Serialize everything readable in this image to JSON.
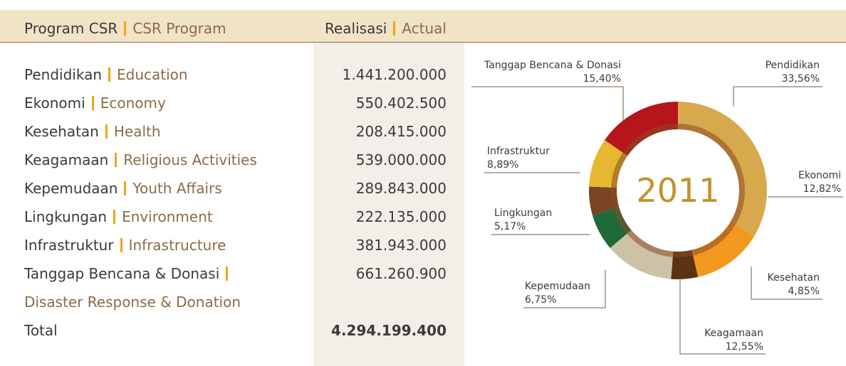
{
  "table": {
    "header": {
      "program_id": "Program CSR",
      "program_en": "CSR Program",
      "actual_id": "Realisasi",
      "actual_en": "Actual"
    },
    "rows": [
      {
        "label_id": "Pendidikan",
        "label_en": "Education",
        "value": "1.441.200.000"
      },
      {
        "label_id": "Ekonomi",
        "label_en": "Economy",
        "value": "550.402.500"
      },
      {
        "label_id": "Kesehatan",
        "label_en": "Health",
        "value": "208.415.000"
      },
      {
        "label_id": "Keagamaan",
        "label_en": "Religious Activities",
        "value": "539.000.000"
      },
      {
        "label_id": "Kepemudaan",
        "label_en": "Youth Affairs",
        "value": "289.843.000"
      },
      {
        "label_id": "Lingkungan",
        "label_en": "Environment",
        "value": "222.135.000"
      },
      {
        "label_id": "Infrastruktur",
        "label_en": "Infrastructure",
        "value": "381.943.000"
      },
      {
        "label_id": "Tanggap Bencana & Donasi",
        "label_en": "Disaster Response & Donation",
        "value": "661.260.900"
      }
    ],
    "total": {
      "label": "Total",
      "value": "4.294.199.400"
    }
  },
  "chart": {
    "type": "pie",
    "center_label": "2011",
    "categories": [
      "Pendidikan",
      "Ekonomi",
      "Kesehatan",
      "Keagamaan",
      "Kepemudaan",
      "Lingkungan",
      "Infrastruktur",
      "Tanggap Bencana & Donasi"
    ],
    "values": [
      33.56,
      12.82,
      4.85,
      12.55,
      6.75,
      5.17,
      8.89,
      15.4
    ],
    "value_labels": [
      "33,56%",
      "12,82%",
      "4,85%",
      "12,55%",
      "6,75%",
      "5,17%",
      "8,89%",
      "15,40%"
    ],
    "colors": [
      "#d8a94c",
      "#f2981f",
      "#5b3212",
      "#cdc2a6",
      "#1e6b39",
      "#7a4522",
      "#e6b733",
      "#b5151b"
    ]
  }
}
